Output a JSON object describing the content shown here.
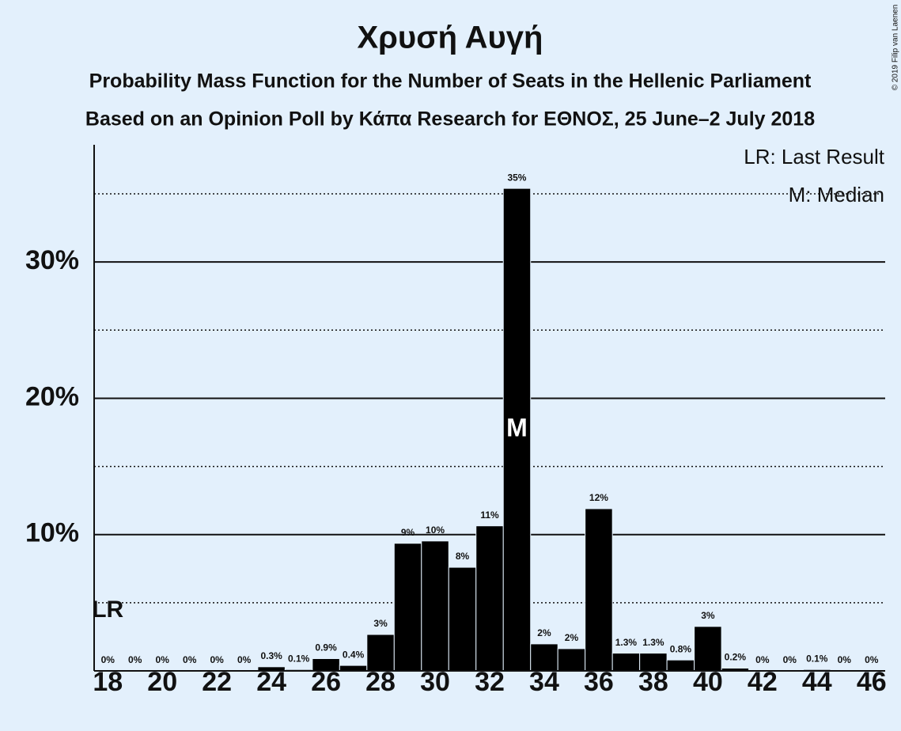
{
  "chart_data": {
    "type": "bar",
    "title": "Χρυσή Αυγή",
    "subtitle": [
      "Probability Mass Function for the Number of Seats in the Hellenic Parliament",
      "Based on an Opinion Poll by Κάπα Research for ΕΘΝΟΣ, 25 June–2 July 2018"
    ],
    "copyright": "© 2019 Filip van Laenen",
    "x": [
      18,
      19,
      20,
      21,
      22,
      23,
      24,
      25,
      26,
      27,
      28,
      29,
      30,
      31,
      32,
      33,
      34,
      35,
      36,
      37,
      38,
      39,
      40,
      41,
      42,
      43,
      44,
      45,
      46
    ],
    "values": [
      0,
      0,
      0,
      0,
      0,
      0,
      0.3,
      0.1,
      0.9,
      0.4,
      2.67,
      9.36,
      9.53,
      7.6,
      10.64,
      35.4,
      1.98,
      1.63,
      11.9,
      1.3,
      1.3,
      0.8,
      3.26,
      0.2,
      0,
      0,
      0.1,
      0,
      0
    ],
    "value_labels": [
      "0%",
      "0%",
      "0%",
      "0%",
      "0%",
      "0%",
      "0.3%",
      "0.1%",
      "0.9%",
      "0.4%",
      "3%",
      "9%",
      "10%",
      "8%",
      "11%",
      "35%",
      "2%",
      "2%",
      "12%",
      "1.3%",
      "1.3%",
      "0.8%",
      "3%",
      "0.2%",
      "0%",
      "0%",
      "0.1%",
      "0%",
      "0%"
    ],
    "color": "#000000",
    "xlim": [
      17.5,
      46.5
    ],
    "xticks": [
      18,
      20,
      22,
      24,
      26,
      28,
      30,
      32,
      34,
      36,
      38,
      40,
      42,
      44,
      46
    ],
    "ylim": [
      0,
      38.6
    ],
    "yticks": [
      {
        "value": 10,
        "label": "10%"
      },
      {
        "value": 20,
        "label": "20%"
      },
      {
        "value": 30,
        "label": "30%"
      }
    ],
    "minor_yticks": [
      5,
      15,
      25,
      35
    ],
    "grid": true,
    "last_result": 18,
    "last_result_label": "LR",
    "median": 33,
    "median_label": "M",
    "legend": [
      "LR: Last Result",
      "M: Median"
    ],
    "legend_position": "top-right"
  }
}
